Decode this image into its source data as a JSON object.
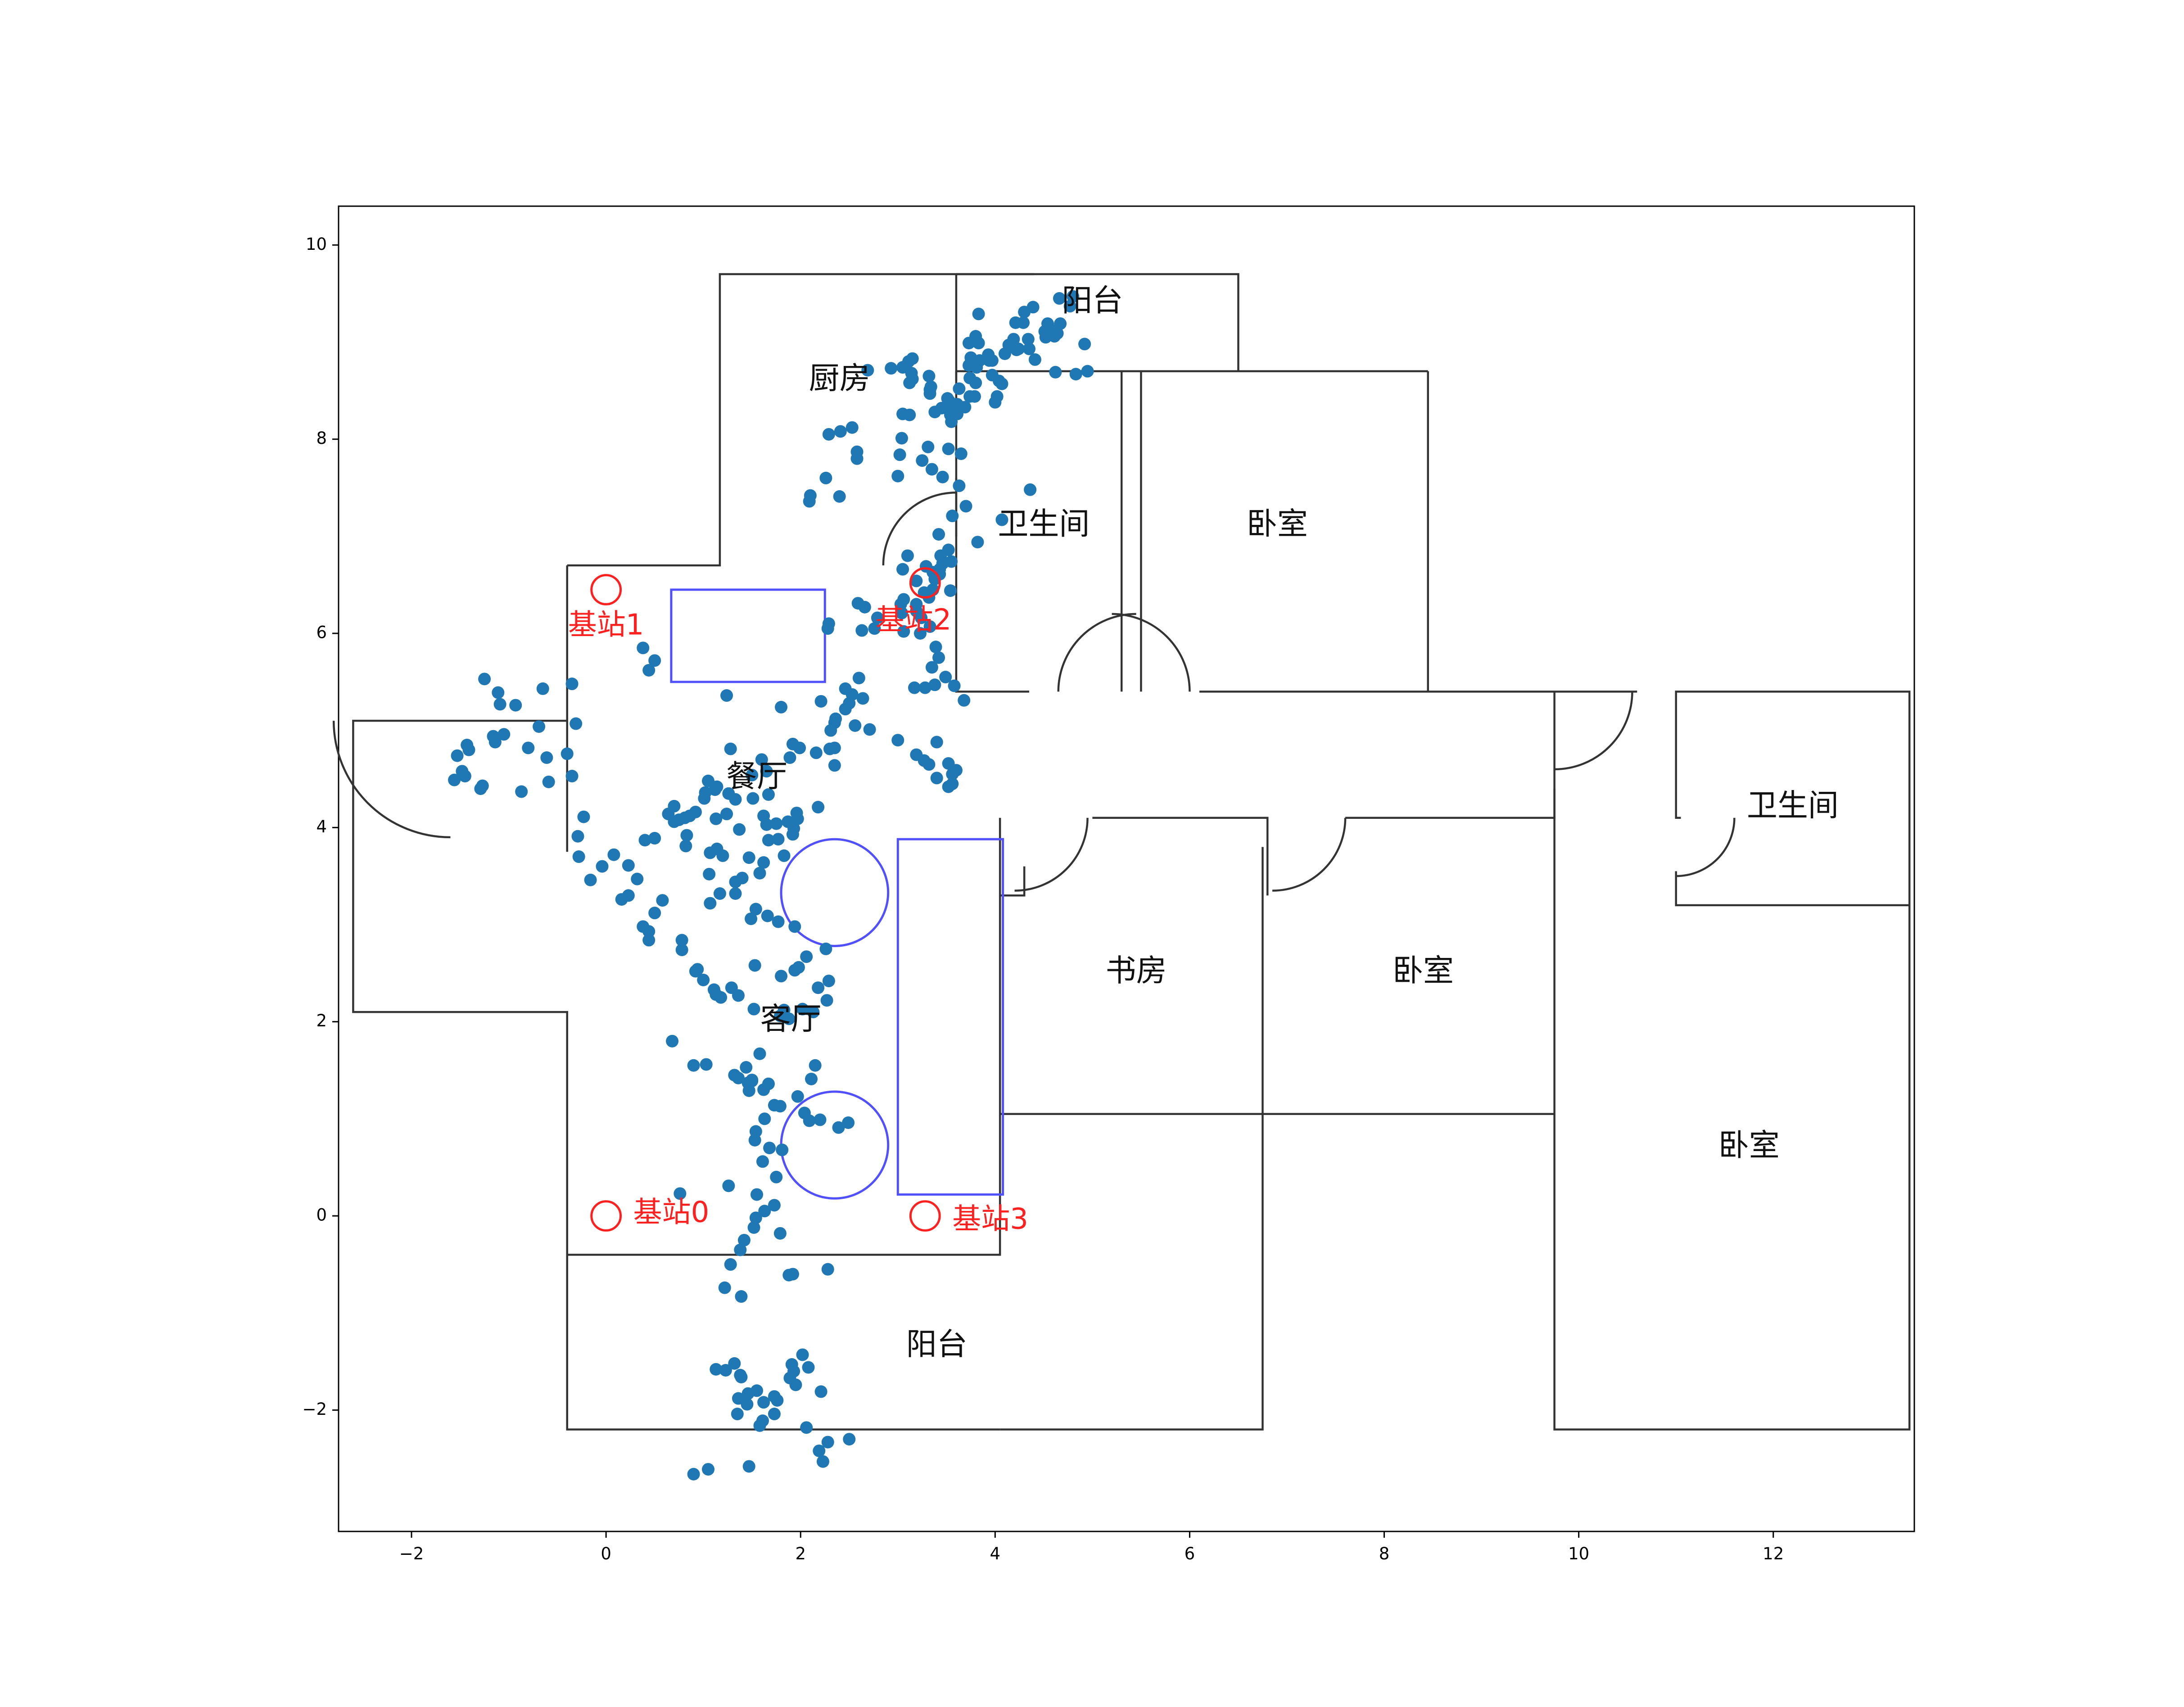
{
  "chart_data": {
    "type": "scatter",
    "title": "",
    "xlabel": "",
    "ylabel": "",
    "xlim": [
      -2.75,
      13.45
    ],
    "ylim": [
      -3.25,
      10.4
    ],
    "x_ticks": [
      -2,
      0,
      2,
      4,
      6,
      8,
      10,
      12
    ],
    "y_ticks": [
      -2,
      0,
      2,
      4,
      6,
      8,
      10
    ],
    "x_tick_labels": [
      "−2",
      "0",
      "2",
      "4",
      "6",
      "8",
      "10",
      "12"
    ],
    "y_tick_labels": [
      "−2",
      "0",
      "2",
      "4",
      "6",
      "8",
      "10"
    ],
    "grid": false,
    "colors": {
      "points": "#1f77b4",
      "walls": "#333333",
      "furniture": "#5050ff",
      "base_stations": "#ff2020"
    },
    "rooms": [
      {
        "label": "阳台",
        "x": 5.0,
        "y": 9.4
      },
      {
        "label": "厨房",
        "x": 2.4,
        "y": 8.6
      },
      {
        "label": "卫生间",
        "x": 4.5,
        "y": 7.1
      },
      {
        "label": "卧室",
        "x": 6.9,
        "y": 7.1
      },
      {
        "label": "餐厅",
        "x": 1.55,
        "y": 4.5
      },
      {
        "label": "卫生间",
        "x": 12.2,
        "y": 4.2
      },
      {
        "label": "书房",
        "x": 5.45,
        "y": 2.5
      },
      {
        "label": "卧室",
        "x": 8.4,
        "y": 2.5
      },
      {
        "label": "客厅",
        "x": 1.9,
        "y": 2.0
      },
      {
        "label": "卧室",
        "x": 11.75,
        "y": 0.7
      },
      {
        "label": "阳台",
        "x": 3.4,
        "y": -1.35
      }
    ],
    "base_stations": [
      {
        "label": "基站0",
        "x": 0.0,
        "y": 0.0
      },
      {
        "label": "基站1",
        "x": 0.0,
        "y": 6.45
      },
      {
        "label": "基站2",
        "x": 3.28,
        "y": 6.52
      },
      {
        "label": "基站3",
        "x": 3.28,
        "y": 0.0
      }
    ],
    "series": [
      {
        "x": [
          4.66,
          4.39,
          4.3,
          3.83,
          4.29,
          4.54,
          4.62,
          4.64,
          4.51,
          4.77,
          4.8,
          4.67,
          4.52,
          4.21,
          4.19,
          4.24,
          4.22,
          3.97,
          3.94,
          3.73,
          3.97,
          4.04,
          4.07,
          3.74,
          3.74,
          3.63,
          3.61,
          4.02,
          4.0,
          3.69,
          3.61,
          3.53,
          3.51,
          3.32,
          3.33,
          3.05,
          3.15,
          3.12,
          3.34,
          3.14,
          2.93,
          3.11,
          3.15,
          3.33,
          3.05,
          2.69,
          3.04,
          3.02,
          3.0,
          3.25,
          3.31,
          3.35,
          3.52,
          2.58,
          2.58,
          3.65,
          3.63,
          3.46,
          3.7,
          4.36,
          4.07,
          3.56,
          3.42,
          3.82,
          3.29,
          3.44,
          3.52,
          3.1,
          3.43,
          3.36,
          3.46,
          3.55,
          3.38,
          3.43,
          4.62,
          4.83,
          4.95,
          3.73,
          4.41,
          4.92,
          4.61,
          4.34,
          4.62,
          3.75,
          3.83,
          3.8,
          4.1,
          4.35,
          4.14,
          3.93,
          3.84,
          3.75,
          3.81,
          3.8,
          3.79,
          3.55,
          3.12,
          3.38,
          3.45,
          3.55,
          3.54,
          2.29,
          2.41,
          2.53,
          2.09,
          2.26,
          2.1,
          2.4,
          3.05,
          3.19,
          3.06,
          3.19,
          3.04,
          3.54,
          3.36,
          3.27,
          3.32,
          3.03,
          3.19,
          2.59,
          2.79,
          2.63,
          2.76,
          2.29,
          2.28,
          2.66,
          3.24,
          3.33,
          3.06,
          3.23,
          3.39,
          3.42,
          3.35,
          3.38,
          3.28,
          3.49,
          3.58,
          3.68,
          3.17,
          3.0,
          3.4,
          3.19,
          3.52,
          3.32,
          3.6,
          3.27,
          3.4,
          3.56,
          3.52,
          3.56,
          2.21,
          2.46,
          2.53,
          2.6,
          2.64,
          2.46,
          2.5,
          2.35,
          2.56,
          2.36,
          2.71,
          2.35,
          2.35,
          2.3,
          1.67,
          2.18,
          1.96,
          1.97,
          1.93,
          1.77,
          1.65,
          1.14,
          1.37,
          1.07,
          1.2,
          0.86,
          0.7,
          0.7,
          0.5,
          0.64,
          0.4,
          -1.25,
          -1.11,
          -1.09,
          -0.93,
          -0.65,
          -0.35,
          -0.31,
          -0.69,
          -1.05,
          -1.16,
          -1.14,
          -0.8,
          -0.61,
          -0.4,
          -1.41,
          -1.43,
          -1.53,
          -1.48,
          -1.45,
          -1.56,
          -1.27,
          -1.29,
          -0.59,
          -0.35,
          -0.87,
          -0.23,
          -0.29,
          -0.16,
          0.16,
          0.23,
          0.38,
          0.44,
          0.58,
          0.5,
          0.44,
          0.78,
          0.78,
          0.92,
          0.94,
          1.0,
          1.18,
          1.36,
          1.29,
          1.13,
          1.11,
          1.52,
          1.53,
          1.8,
          1.83,
          2.02,
          1.88,
          1.79,
          2.13,
          2.27,
          2.18,
          2.29,
          1.98,
          1.94,
          2.06,
          2.26,
          1.94,
          1.77,
          1.54,
          1.66,
          1.49,
          1.33,
          1.58,
          1.62,
          1.83,
          0.23,
          0.32,
          -0.04,
          -0.28,
          0.08,
          0.82,
          0.81,
          1.01,
          1.12,
          1.14,
          1.26,
          1.02,
          1.05,
          1.51,
          1.62,
          1.75,
          1.87,
          1.92,
          1.67,
          1.47,
          1.4,
          1.33,
          1.07,
          1.17,
          1.06,
          0.83,
          0.75,
          0.92,
          1.13,
          1.24,
          1.33,
          1.6,
          1.65,
          1.5,
          1.89,
          1.92,
          1.99,
          2.16,
          2.31,
          1.8,
          1.28,
          1.24,
          0.44,
          0.38,
          0.5,
          0.68,
          0.9,
          1.03,
          1.32,
          1.36,
          1.46,
          1.5,
          1.47,
          1.62,
          1.67,
          1.5,
          1.79,
          1.97,
          1.73,
          1.47,
          1.44,
          1.58,
          2.15,
          2.11,
          2.04,
          2.09,
          2.2,
          2.39,
          2.49,
          1.63,
          1.53,
          1.54,
          1.68,
          1.61,
          1.81,
          1.75,
          1.26,
          1.55,
          1.63,
          1.73,
          0.76,
          1.79,
          1.52,
          1.54,
          1.42,
          1.38,
          1.28,
          1.22,
          1.39,
          1.92,
          1.88,
          2.28,
          1.32,
          1.13,
          1.23,
          1.38,
          1.39,
          1.91,
          1.95,
          2.21,
          1.73,
          1.36,
          1.46,
          1.55,
          1.62,
          1.45,
          1.35,
          1.58,
          1.61,
          1.73,
          1.76,
          1.89,
          2.02,
          2.08,
          1.93,
          2.06,
          2.19,
          2.23,
          1.47,
          1.05,
          0.9,
          2.28,
          2.5
        ],
        "y": [
          9.45,
          9.36,
          9.31,
          9.29,
          9.2,
          9.19,
          9.12,
          9.09,
          9.11,
          9.37,
          9.47,
          9.19,
          9.05,
          9.2,
          9.03,
          8.93,
          8.92,
          8.81,
          8.81,
          8.76,
          8.66,
          8.6,
          8.57,
          8.63,
          8.44,
          8.52,
          8.36,
          8.44,
          8.38,
          8.33,
          8.26,
          8.39,
          8.42,
          8.65,
          8.51,
          8.74,
          8.62,
          8.58,
          8.54,
          8.68,
          8.73,
          8.8,
          8.83,
          8.47,
          8.26,
          8.71,
          8.01,
          7.84,
          7.62,
          7.78,
          7.92,
          7.69,
          7.9,
          7.8,
          7.87,
          7.85,
          7.52,
          7.61,
          7.31,
          7.48,
          7.17,
          7.21,
          7.02,
          6.94,
          6.69,
          6.8,
          6.86,
          6.8,
          6.66,
          6.63,
          6.72,
          6.74,
          6.56,
          6.61,
          8.69,
          8.67,
          8.7,
          8.99,
          8.82,
          8.98,
          9.06,
          9.03,
          9.1,
          8.84,
          8.99,
          9.06,
          8.88,
          8.93,
          8.97,
          8.87,
          8.81,
          8.79,
          8.74,
          8.58,
          8.44,
          8.18,
          8.25,
          8.28,
          8.32,
          8.36,
          8.25,
          8.05,
          8.08,
          8.12,
          7.36,
          7.6,
          7.42,
          7.41,
          6.66,
          6.54,
          6.35,
          6.3,
          6.21,
          6.44,
          6.45,
          6.42,
          6.37,
          6.3,
          6.23,
          6.31,
          6.16,
          6.03,
          6.05,
          6.1,
          6.05,
          6.27,
          6.16,
          6.07,
          6.02,
          6.0,
          5.86,
          5.75,
          5.65,
          5.47,
          5.44,
          5.55,
          5.46,
          5.31,
          5.44,
          4.9,
          4.88,
          4.75,
          4.66,
          4.65,
          4.59,
          4.69,
          4.51,
          4.45,
          4.42,
          4.55,
          5.3,
          5.43,
          5.37,
          5.54,
          5.33,
          5.22,
          5.28,
          5.08,
          5.05,
          5.12,
          5.01,
          4.82,
          4.64,
          4.81,
          4.34,
          4.21,
          4.15,
          4.09,
          3.99,
          3.88,
          4.03,
          3.78,
          3.98,
          3.74,
          3.71,
          4.12,
          4.22,
          4.06,
          3.89,
          4.14,
          3.87,
          5.53,
          5.39,
          5.27,
          5.26,
          5.43,
          5.48,
          5.07,
          5.04,
          4.96,
          4.94,
          4.88,
          4.82,
          4.72,
          4.76,
          4.8,
          4.85,
          4.74,
          4.58,
          4.53,
          4.49,
          4.43,
          4.4,
          4.47,
          4.53,
          4.37,
          4.11,
          3.91,
          3.46,
          3.26,
          3.3,
          2.98,
          2.93,
          3.25,
          3.12,
          2.84,
          2.84,
          2.74,
          2.52,
          2.54,
          2.43,
          2.25,
          2.27,
          2.35,
          2.28,
          2.33,
          2.13,
          2.58,
          2.47,
          2.12,
          2.13,
          2.03,
          2.06,
          2.1,
          2.22,
          2.35,
          2.42,
          2.56,
          2.53,
          2.67,
          2.75,
          2.98,
          3.03,
          3.16,
          3.09,
          3.06,
          3.44,
          3.53,
          3.64,
          3.71,
          3.61,
          3.47,
          3.6,
          3.7,
          3.72,
          3.81,
          4.1,
          4.3,
          4.39,
          4.42,
          4.35,
          4.36,
          4.48,
          4.3,
          4.12,
          4.04,
          4.06,
          3.93,
          3.87,
          3.69,
          3.48,
          3.32,
          3.22,
          3.32,
          3.52,
          3.92,
          4.08,
          4.16,
          4.09,
          4.14,
          4.29,
          4.7,
          4.58,
          4.54,
          4.72,
          4.86,
          4.82,
          4.77,
          5.0,
          5.24,
          4.81,
          5.36,
          5.62,
          5.85,
          5.72,
          1.8,
          1.55,
          1.56,
          1.45,
          1.42,
          1.37,
          1.4,
          1.29,
          1.3,
          1.36,
          1.39,
          1.13,
          1.23,
          1.14,
          1.29,
          1.53,
          1.67,
          1.55,
          1.41,
          1.06,
          0.98,
          0.99,
          0.91,
          0.96,
          1.0,
          0.78,
          0.87,
          0.7,
          0.56,
          0.68,
          0.4,
          0.31,
          0.22,
          0.05,
          0.11,
          0.23,
          -0.18,
          -0.12,
          -0.02,
          -0.25,
          -0.35,
          -0.5,
          -0.74,
          -0.83,
          -0.6,
          -0.61,
          -0.55,
          -1.52,
          -1.58,
          -1.59,
          -1.64,
          -1.66,
          -1.53,
          -1.74,
          -1.81,
          -1.86,
          -1.88,
          -1.83,
          -1.8,
          -1.92,
          -1.94,
          -2.04,
          -2.16,
          -2.11,
          -2.04,
          -1.9,
          -1.67,
          -1.43,
          -1.56,
          -1.6,
          -2.18,
          -2.42,
          -2.53,
          -2.58,
          -2.61,
          -2.66,
          -2.33,
          -2.3
        ]
      }
    ]
  }
}
